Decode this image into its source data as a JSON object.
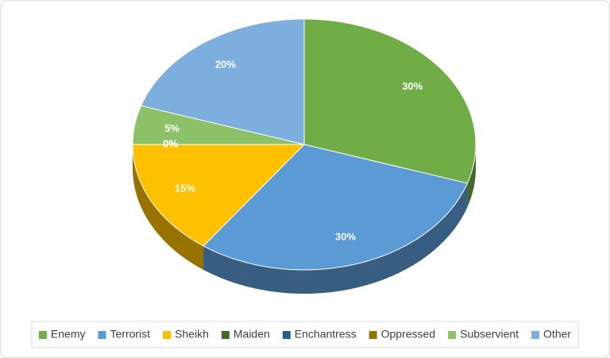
{
  "chart_data": {
    "type": "pie",
    "categories": [
      "Enemy",
      "Terrorist",
      "Sheikh",
      "Maiden",
      "Enchantress",
      "Oppressed",
      "Subservient",
      "Other"
    ],
    "values": [
      30,
      30,
      15,
      0,
      0,
      0,
      5,
      20
    ],
    "value_labels": [
      "30%",
      "30%",
      "15%",
      "0%",
      "0%",
      "0%",
      "5%",
      "20%"
    ],
    "colors": [
      "#70ad47",
      "#5b9bd5",
      "#ffc000",
      "#43682b",
      "#255e91",
      "#997300",
      "#8cc168",
      "#7cafdd"
    ],
    "legend": "bottom"
  }
}
